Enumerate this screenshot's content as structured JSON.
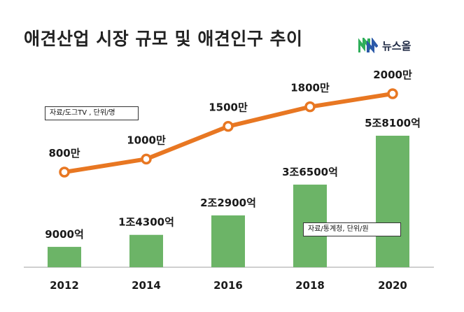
{
  "header": {
    "title": "애견산업 시장 규모 및 애견인구 추이",
    "logo_text": "뉴스올",
    "logo_mark": "logo-mark-icon"
  },
  "notes": {
    "source_1": "자료/도그TV , 단위/명",
    "source_2": "자료/통계청, 단위/원"
  },
  "colors": {
    "bar": "#6cb467",
    "line": "#e87722",
    "marker_fill": "#ffffff",
    "axis": "#bfbfbf",
    "logo_green": "#2fae5a",
    "logo_blue": "#2b59a8"
  },
  "chart_data": {
    "type": "bar",
    "categories": [
      "2012",
      "2014",
      "2016",
      "2018",
      "2020"
    ],
    "series": [
      {
        "type": "bar",
        "values": [
          9000,
          14300,
          22900,
          36500,
          58100
        ],
        "labels": [
          "9000억",
          "1조4300억",
          "2조2900억",
          "3조6500억",
          "5조8100억"
        ]
      },
      {
        "type": "line",
        "values": [
          800,
          1000,
          1500,
          1800,
          2000
        ],
        "labels": [
          "800만",
          "1000만",
          "1500만",
          "1800만",
          "2000만"
        ]
      }
    ],
    "title": "애견산업 시장 규모 및 애견인구 추이",
    "grid": false,
    "legend": "none"
  }
}
